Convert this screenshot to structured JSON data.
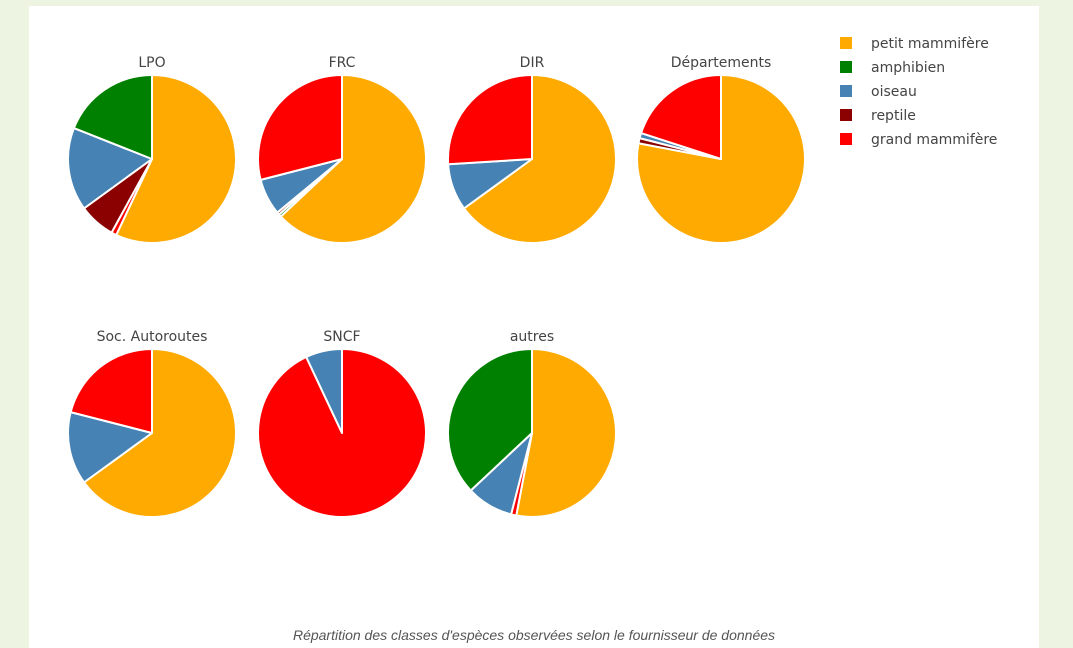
{
  "chart_data": {
    "type": "pie",
    "legend": {
      "placement": "top-right",
      "entries": [
        "petit mammifère",
        "amphibien",
        "oiseau",
        "reptile",
        "grand mammifère"
      ]
    },
    "colors": {
      "petit mammifère": "#ffaa00",
      "amphibien": "#008000",
      "oiseau": "#4682b4",
      "reptile": "#8b0000",
      "grand mammifère": "#ff0000"
    },
    "charts": [
      {
        "title": "LPO",
        "slices": [
          {
            "label": "petit mammifère",
            "value": 57.0
          },
          {
            "label": "grand mammifère",
            "value": 1.0
          },
          {
            "label": "reptile",
            "value": 7.0
          },
          {
            "label": "oiseau",
            "value": 16.0
          },
          {
            "label": "amphibien",
            "value": 19.0
          }
        ]
      },
      {
        "title": "FRC",
        "slices": [
          {
            "label": "petit mammifère",
            "value": 63.0
          },
          {
            "label": "amphibien",
            "value": 0.5
          },
          {
            "label": "reptile",
            "value": 0.5
          },
          {
            "label": "oiseau",
            "value": 7.0
          },
          {
            "label": "grand mammifère",
            "value": 29.0
          }
        ]
      },
      {
        "title": "DIR",
        "slices": [
          {
            "label": "petit mammifère",
            "value": 65.0
          },
          {
            "label": "oiseau",
            "value": 9.0
          },
          {
            "label": "grand mammifère",
            "value": 26.0
          }
        ]
      },
      {
        "title": "Départements",
        "slices": [
          {
            "label": "petit mammifère",
            "value": 78.0
          },
          {
            "label": "reptile",
            "value": 1.0
          },
          {
            "label": "oiseau",
            "value": 1.0
          },
          {
            "label": "grand mammifère",
            "value": 20.0
          }
        ]
      },
      {
        "title": "Soc. Autoroutes",
        "slices": [
          {
            "label": "petit mammifère",
            "value": 65.0
          },
          {
            "label": "oiseau",
            "value": 14.0
          },
          {
            "label": "grand mammifère",
            "value": 21.0
          }
        ]
      },
      {
        "title": "SNCF",
        "slices": [
          {
            "label": "grand mammifère",
            "value": 93.0
          },
          {
            "label": "oiseau",
            "value": 7.0
          }
        ]
      },
      {
        "title": "autres",
        "slices": [
          {
            "label": "petit mammifère",
            "value": 53.0
          },
          {
            "label": "grand mammifère",
            "value": 1.0
          },
          {
            "label": "oiseau",
            "value": 9.0
          },
          {
            "label": "amphibien",
            "value": 37.0
          }
        ]
      }
    ]
  },
  "caption": "Répartition des classes d'espèces observées selon le fournisseur de données"
}
